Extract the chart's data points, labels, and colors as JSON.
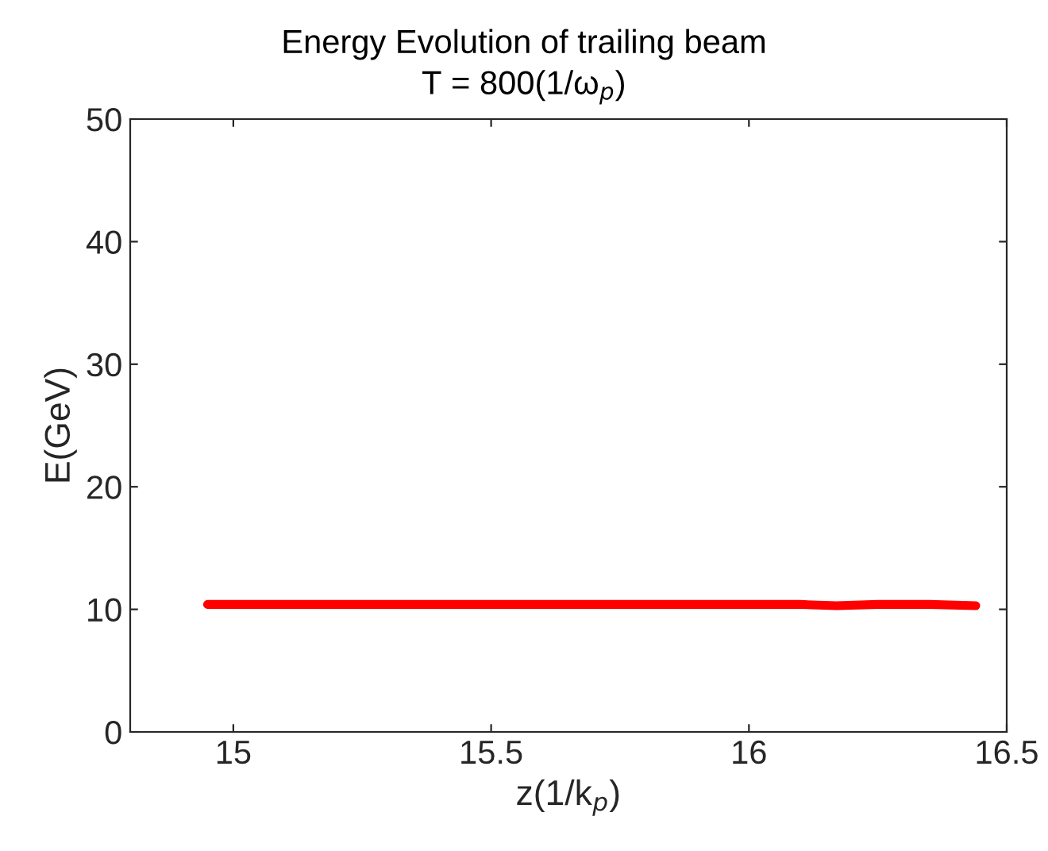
{
  "chart_data": {
    "type": "line",
    "title": "Energy Evolution of trailing beam",
    "subtitle": "T = 800(1/ω$_{p}$)",
    "xlabel": "z(1/k$_{p}$)",
    "ylabel": "E(GeV)",
    "x": [
      14.95,
      15.1,
      15.3,
      15.5,
      15.7,
      15.9,
      16.1,
      16.17,
      16.25,
      16.35,
      16.44
    ],
    "series": [
      {
        "color": "#ff0000",
        "values": [
          10.4,
          10.4,
          10.4,
          10.4,
          10.4,
          10.4,
          10.4,
          10.3,
          10.4,
          10.4,
          10.3
        ]
      }
    ],
    "xlim": [
      14.8,
      16.5
    ],
    "xticks": [
      15,
      15.5,
      16,
      16.5
    ],
    "ylim": [
      0,
      50
    ],
    "yticks": [
      0,
      10,
      20,
      30,
      40,
      50
    ],
    "grid": false,
    "marker": "none",
    "line_style": "solid"
  }
}
